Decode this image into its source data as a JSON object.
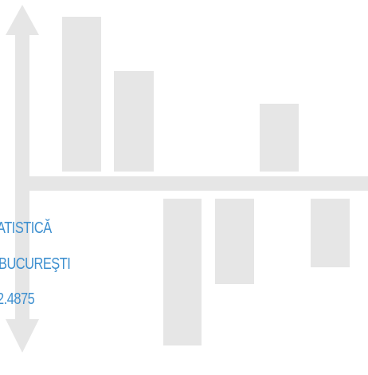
{
  "colors": {
    "shape": "#e6e6e6",
    "text": "#3d8fcf",
    "background": "#ffffff"
  },
  "icons": {
    "axis": "double-headed-vertical-arrow-icon"
  },
  "bars_above": [
    1.0,
    0.65,
    0.0,
    0.0,
    0.44,
    0.0
  ],
  "bars_below": [
    0.0,
    0.0,
    1.0,
    0.58,
    0.0,
    0.47
  ],
  "text": {
    "line1": "ATISTICĂ",
    "line2": "BUCUREŞTI",
    "line3": "2.4875"
  }
}
